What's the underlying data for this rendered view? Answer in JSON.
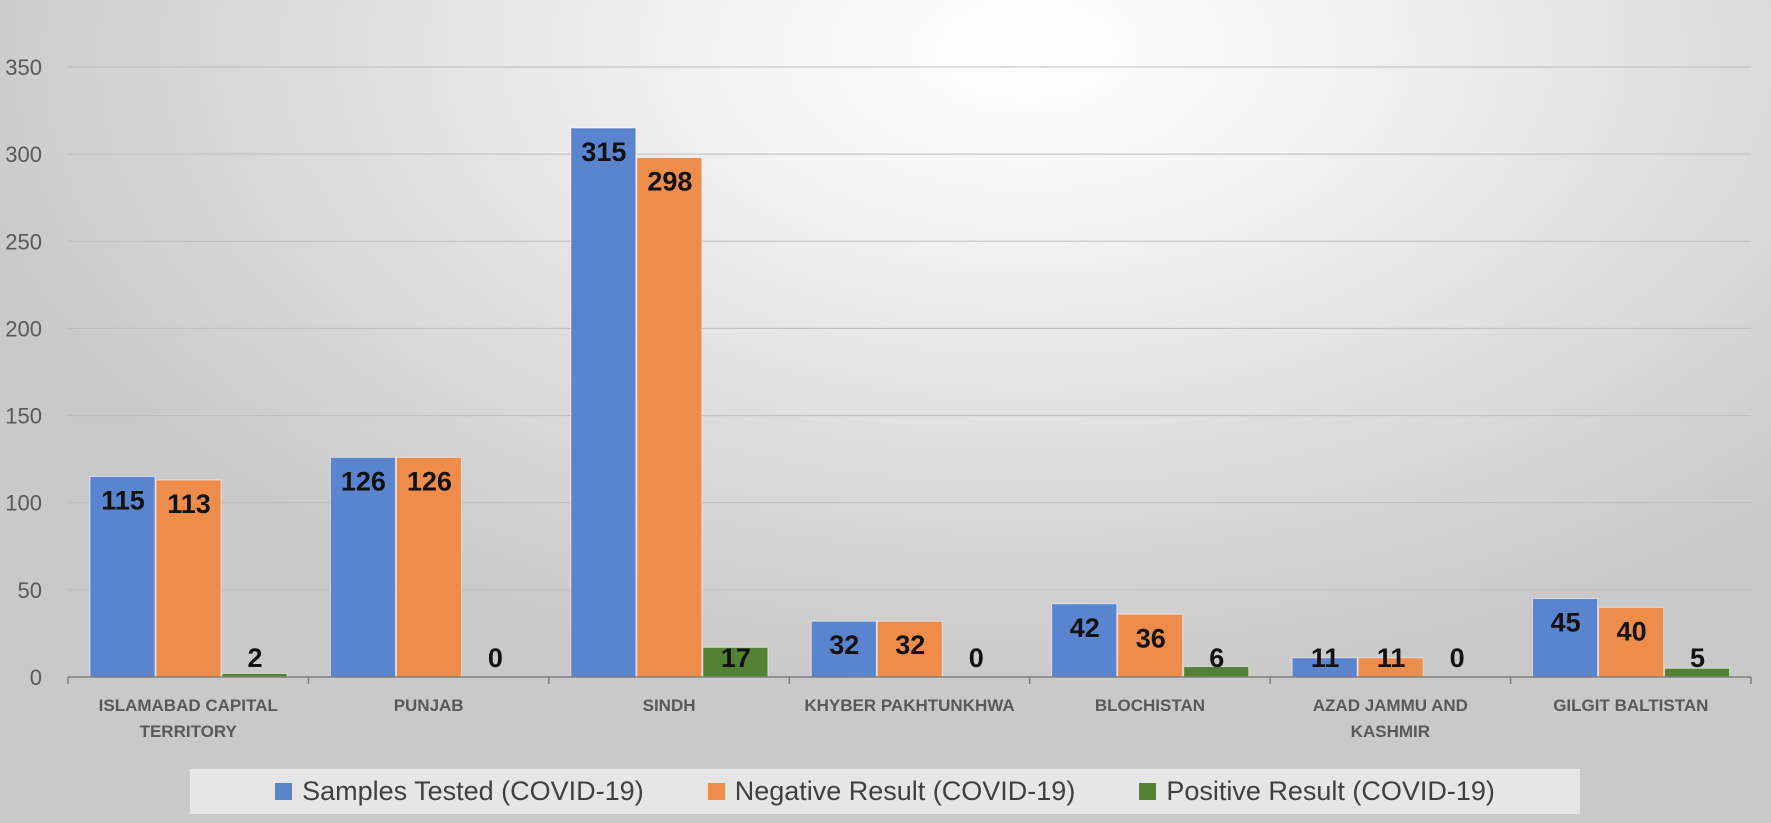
{
  "chart_data": {
    "type": "bar",
    "title": "",
    "xlabel": "",
    "ylabel": "",
    "ylim": [
      0,
      350
    ],
    "yticks": [
      0,
      50,
      100,
      150,
      200,
      250,
      300,
      350
    ],
    "grid": true,
    "legend_position": "bottom",
    "categories": [
      [
        "ISLAMABAD CAPITAL",
        "TERRITORY"
      ],
      [
        "PUNJAB"
      ],
      [
        "SINDH"
      ],
      [
        "KHYBER PAKHTUNKHWA"
      ],
      [
        "BLOCHISTAN"
      ],
      [
        "AZAD JAMMU AND",
        "KASHMIR"
      ],
      [
        "GILGIT BALTISTAN"
      ]
    ],
    "series": [
      {
        "name": "Samples Tested (COVID-19)",
        "color": "#5b84cf",
        "values": [
          115,
          126,
          315,
          32,
          42,
          11,
          45
        ]
      },
      {
        "name": "Negative Result (COVID-19)",
        "color": "#ee8c4c",
        "values": [
          113,
          126,
          298,
          32,
          36,
          11,
          40
        ]
      },
      {
        "name": "Positive Result (COVID-19)",
        "color": "#548235",
        "values": [
          2,
          0,
          17,
          0,
          6,
          0,
          5
        ]
      }
    ]
  }
}
